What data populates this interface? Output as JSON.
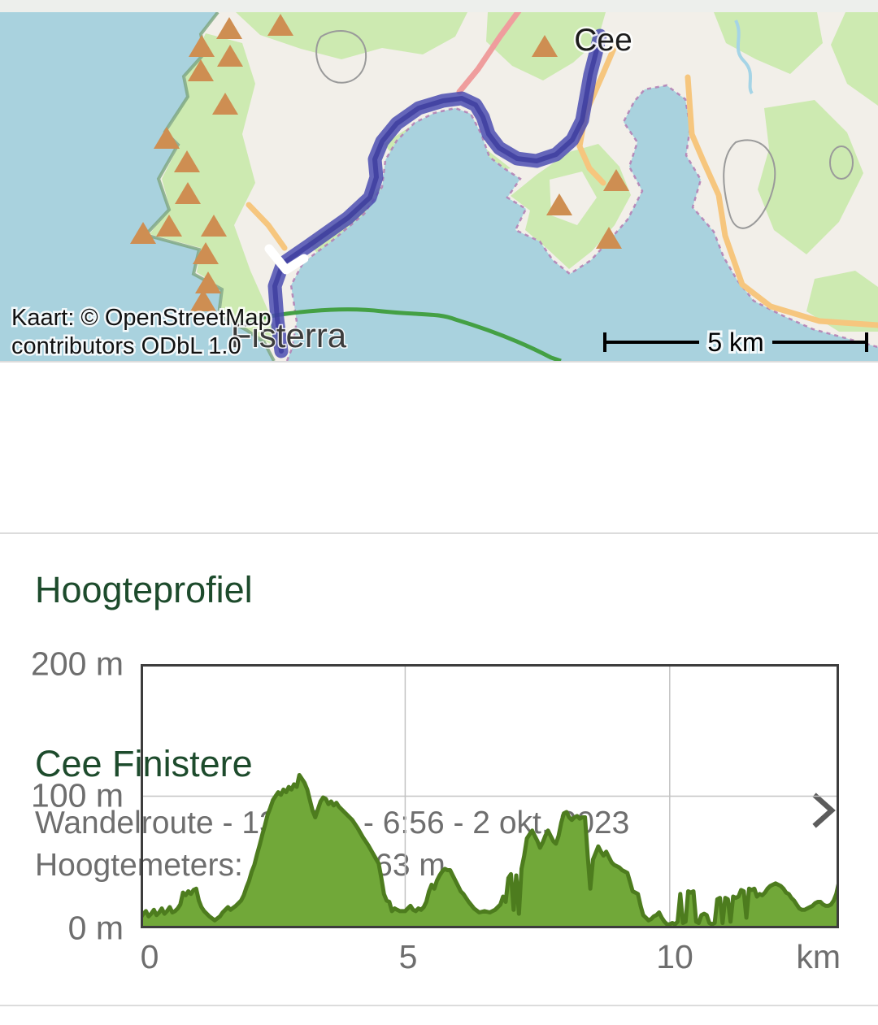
{
  "map": {
    "city_label": "Cee",
    "city_label2": "Fisterra",
    "attribution_line1": "Kaart: © OpenStreetMap",
    "attribution_line2": "contributors ODbL 1.0",
    "scale_label": "5 km",
    "colors": {
      "water": "#a9d2de",
      "land": "#f2efe9",
      "land_green": "#cdeab1",
      "peak": "#ce8e52",
      "route_halo": "#4c4eb2",
      "route_core": "#39399b",
      "road_yellow": "#f6c67e",
      "road_pink": "#ef9d9d",
      "boundary_purple": "#b37cb3",
      "trail_green": "#44a044"
    },
    "peaks": [
      [
        282,
        20
      ],
      [
        345,
        16
      ],
      [
        248,
        42
      ],
      [
        283,
        54
      ],
      [
        247,
        72
      ],
      [
        277,
        113
      ],
      [
        205,
        155
      ],
      [
        230,
        184
      ],
      [
        231,
        223
      ],
      [
        208,
        263
      ],
      [
        263,
        263
      ],
      [
        176,
        272
      ],
      [
        253,
        297
      ],
      [
        256,
        333
      ],
      [
        250,
        355
      ],
      [
        670,
        42
      ],
      [
        758,
        207
      ],
      [
        688,
        237
      ],
      [
        749,
        278
      ]
    ]
  },
  "route_card": {
    "title": "Cee Finistere",
    "subtitle_line1": "Wandelroute - 13,2 km - 6:56 - 2 okt. 2023",
    "subtitle_line2": "Hoogtemeters: 1061 ± 163 m"
  },
  "profile_section": {
    "heading": "Hoogteprofiel"
  },
  "chart_data": {
    "type": "area",
    "title": "Hoogteprofiel",
    "xlabel": "km",
    "ylabel": "m",
    "xlim": [
      0,
      13.2
    ],
    "ylim": [
      0,
      200
    ],
    "grid": true,
    "x_gridlines": [
      5,
      10
    ],
    "y_gridlines": [
      100
    ],
    "x_ticks": [
      {
        "value": 0,
        "label": "0"
      },
      {
        "value": 5,
        "label": "5"
      },
      {
        "value": 10,
        "label": "10"
      }
    ],
    "x_unit_label": "km",
    "y_ticks": [
      {
        "value": 200,
        "label": "200 m"
      },
      {
        "value": 100,
        "label": "100 m"
      },
      {
        "value": 0,
        "label": "0 m"
      }
    ],
    "fill_color": "#71a839",
    "stroke_color": "#4d7c1e",
    "points": [
      [
        0,
        8
      ],
      [
        0.05,
        11
      ],
      [
        0.1,
        13
      ],
      [
        0.15,
        9
      ],
      [
        0.2,
        11
      ],
      [
        0.25,
        14
      ],
      [
        0.3,
        10
      ],
      [
        0.35,
        12
      ],
      [
        0.4,
        15
      ],
      [
        0.45,
        11
      ],
      [
        0.5,
        13
      ],
      [
        0.55,
        16
      ],
      [
        0.6,
        12
      ],
      [
        0.65,
        13
      ],
      [
        0.7,
        15
      ],
      [
        0.75,
        18
      ],
      [
        0.8,
        27
      ],
      [
        0.85,
        25
      ],
      [
        0.9,
        28
      ],
      [
        0.95,
        26
      ],
      [
        1,
        29
      ],
      [
        1.05,
        30
      ],
      [
        1.1,
        21
      ],
      [
        1.15,
        16
      ],
      [
        1.2,
        13
      ],
      [
        1.3,
        9
      ],
      [
        1.4,
        6
      ],
      [
        1.5,
        9
      ],
      [
        1.55,
        12
      ],
      [
        1.6,
        14
      ],
      [
        1.65,
        16
      ],
      [
        1.7,
        14
      ],
      [
        1.8,
        17
      ],
      [
        1.9,
        21
      ],
      [
        1.95,
        25
      ],
      [
        2,
        31
      ],
      [
        2.05,
        36
      ],
      [
        2.1,
        43
      ],
      [
        2.15,
        48
      ],
      [
        2.2,
        56
      ],
      [
        2.25,
        63
      ],
      [
        2.3,
        71
      ],
      [
        2.35,
        78
      ],
      [
        2.4,
        86
      ],
      [
        2.45,
        91
      ],
      [
        2.5,
        97
      ],
      [
        2.55,
        100
      ],
      [
        2.6,
        103
      ],
      [
        2.65,
        101
      ],
      [
        2.7,
        105
      ],
      [
        2.75,
        103
      ],
      [
        2.8,
        107
      ],
      [
        2.85,
        105
      ],
      [
        2.9,
        109
      ],
      [
        2.95,
        107
      ],
      [
        3,
        116
      ],
      [
        3.05,
        113
      ],
      [
        3.1,
        110
      ],
      [
        3.15,
        105
      ],
      [
        3.2,
        97
      ],
      [
        3.25,
        89
      ],
      [
        3.3,
        84
      ],
      [
        3.35,
        90
      ],
      [
        3.4,
        96
      ],
      [
        3.45,
        99
      ],
      [
        3.5,
        98
      ],
      [
        3.55,
        94
      ],
      [
        3.6,
        96
      ],
      [
        3.65,
        93
      ],
      [
        3.7,
        95
      ],
      [
        3.75,
        92
      ],
      [
        3.8,
        90
      ],
      [
        3.85,
        88
      ],
      [
        3.9,
        86
      ],
      [
        3.95,
        84
      ],
      [
        4,
        82
      ],
      [
        4.1,
        76
      ],
      [
        4.2,
        69
      ],
      [
        4.3,
        63
      ],
      [
        4.4,
        56
      ],
      [
        4.5,
        49
      ],
      [
        4.55,
        38
      ],
      [
        4.6,
        26
      ],
      [
        4.65,
        21
      ],
      [
        4.7,
        20
      ],
      [
        4.75,
        13
      ],
      [
        4.8,
        15
      ],
      [
        4.85,
        14
      ],
      [
        4.9,
        13
      ],
      [
        5,
        13
      ],
      [
        5.05,
        15
      ],
      [
        5.1,
        17
      ],
      [
        5.15,
        14
      ],
      [
        5.2,
        13
      ],
      [
        5.25,
        15
      ],
      [
        5.3,
        14
      ],
      [
        5.35,
        16
      ],
      [
        5.4,
        20
      ],
      [
        5.45,
        28
      ],
      [
        5.5,
        33
      ],
      [
        5.55,
        30
      ],
      [
        5.6,
        36
      ],
      [
        5.65,
        40
      ],
      [
        5.7,
        43
      ],
      [
        5.75,
        45
      ],
      [
        5.8,
        44
      ],
      [
        5.85,
        44
      ],
      [
        5.9,
        40
      ],
      [
        5.95,
        36
      ],
      [
        6,
        32
      ],
      [
        6.05,
        28
      ],
      [
        6.1,
        26
      ],
      [
        6.15,
        23
      ],
      [
        6.2,
        20
      ],
      [
        6.3,
        15
      ],
      [
        6.4,
        12
      ],
      [
        6.5,
        13
      ],
      [
        6.6,
        12
      ],
      [
        6.7,
        14
      ],
      [
        6.8,
        18
      ],
      [
        6.85,
        24
      ],
      [
        6.9,
        20
      ],
      [
        6.95,
        38
      ],
      [
        7,
        41
      ],
      [
        7.05,
        14
      ],
      [
        7.1,
        40
      ],
      [
        7.15,
        11
      ],
      [
        7.2,
        45
      ],
      [
        7.25,
        55
      ],
      [
        7.3,
        68
      ],
      [
        7.35,
        71
      ],
      [
        7.4,
        74
      ],
      [
        7.45,
        70
      ],
      [
        7.5,
        66
      ],
      [
        7.55,
        61
      ],
      [
        7.6,
        65
      ],
      [
        7.65,
        70
      ],
      [
        7.7,
        74
      ],
      [
        7.75,
        70
      ],
      [
        7.8,
        66
      ],
      [
        7.85,
        64
      ],
      [
        7.9,
        70
      ],
      [
        7.95,
        80
      ],
      [
        8,
        87
      ],
      [
        8.05,
        88
      ],
      [
        8.1,
        84
      ],
      [
        8.15,
        82
      ],
      [
        8.2,
        84
      ],
      [
        8.25,
        85
      ],
      [
        8.3,
        83
      ],
      [
        8.35,
        84
      ],
      [
        8.4,
        84
      ],
      [
        8.45,
        55
      ],
      [
        8.5,
        30
      ],
      [
        8.55,
        52
      ],
      [
        8.6,
        57
      ],
      [
        8.65,
        62
      ],
      [
        8.7,
        58
      ],
      [
        8.75,
        55
      ],
      [
        8.8,
        58
      ],
      [
        8.85,
        54
      ],
      [
        8.9,
        50
      ],
      [
        8.95,
        48
      ],
      [
        9,
        47
      ],
      [
        9.05,
        46
      ],
      [
        9.1,
        44
      ],
      [
        9.15,
        43
      ],
      [
        9.2,
        42
      ],
      [
        9.25,
        35
      ],
      [
        9.3,
        28
      ],
      [
        9.35,
        27
      ],
      [
        9.4,
        26
      ],
      [
        9.45,
        17
      ],
      [
        9.5,
        10
      ],
      [
        9.55,
        8
      ],
      [
        9.6,
        6
      ],
      [
        9.65,
        7
      ],
      [
        9.7,
        9
      ],
      [
        9.75,
        10
      ],
      [
        9.8,
        12
      ],
      [
        9.85,
        8
      ],
      [
        9.9,
        5
      ],
      [
        9.95,
        3
      ],
      [
        10,
        3
      ],
      [
        10.05,
        4
      ],
      [
        10.1,
        3
      ],
      [
        10.15,
        5
      ],
      [
        10.2,
        26
      ],
      [
        10.25,
        4
      ],
      [
        10.3,
        5
      ],
      [
        10.35,
        28
      ],
      [
        10.4,
        27
      ],
      [
        10.45,
        28
      ],
      [
        10.5,
        5
      ],
      [
        10.55,
        4
      ],
      [
        10.6,
        10
      ],
      [
        10.65,
        11
      ],
      [
        10.7,
        10
      ],
      [
        10.75,
        4
      ],
      [
        10.8,
        3
      ],
      [
        10.85,
        4
      ],
      [
        10.9,
        22
      ],
      [
        10.95,
        23
      ],
      [
        11,
        4
      ],
      [
        11.05,
        23
      ],
      [
        11.1,
        22
      ],
      [
        11.15,
        5
      ],
      [
        11.2,
        24
      ],
      [
        11.25,
        23
      ],
      [
        11.3,
        24
      ],
      [
        11.35,
        29
      ],
      [
        11.4,
        28
      ],
      [
        11.45,
        8
      ],
      [
        11.5,
        30
      ],
      [
        11.55,
        29
      ],
      [
        11.6,
        30
      ],
      [
        11.65,
        24
      ],
      [
        11.7,
        26
      ],
      [
        11.75,
        25
      ],
      [
        11.8,
        27
      ],
      [
        11.85,
        30
      ],
      [
        11.9,
        32
      ],
      [
        11.95,
        33
      ],
      [
        12,
        34
      ],
      [
        12.05,
        33
      ],
      [
        12.1,
        32
      ],
      [
        12.15,
        30
      ],
      [
        12.2,
        27
      ],
      [
        12.25,
        26
      ],
      [
        12.3,
        23
      ],
      [
        12.35,
        21
      ],
      [
        12.4,
        18
      ],
      [
        12.45,
        15
      ],
      [
        12.5,
        14
      ],
      [
        12.55,
        14
      ],
      [
        12.6,
        15
      ],
      [
        12.65,
        16
      ],
      [
        12.7,
        17
      ],
      [
        12.75,
        19
      ],
      [
        12.8,
        20
      ],
      [
        12.85,
        20
      ],
      [
        12.9,
        18
      ],
      [
        12.95,
        17
      ],
      [
        13,
        17
      ],
      [
        13.05,
        18
      ],
      [
        13.1,
        21
      ],
      [
        13.15,
        26
      ],
      [
        13.2,
        35
      ]
    ]
  }
}
